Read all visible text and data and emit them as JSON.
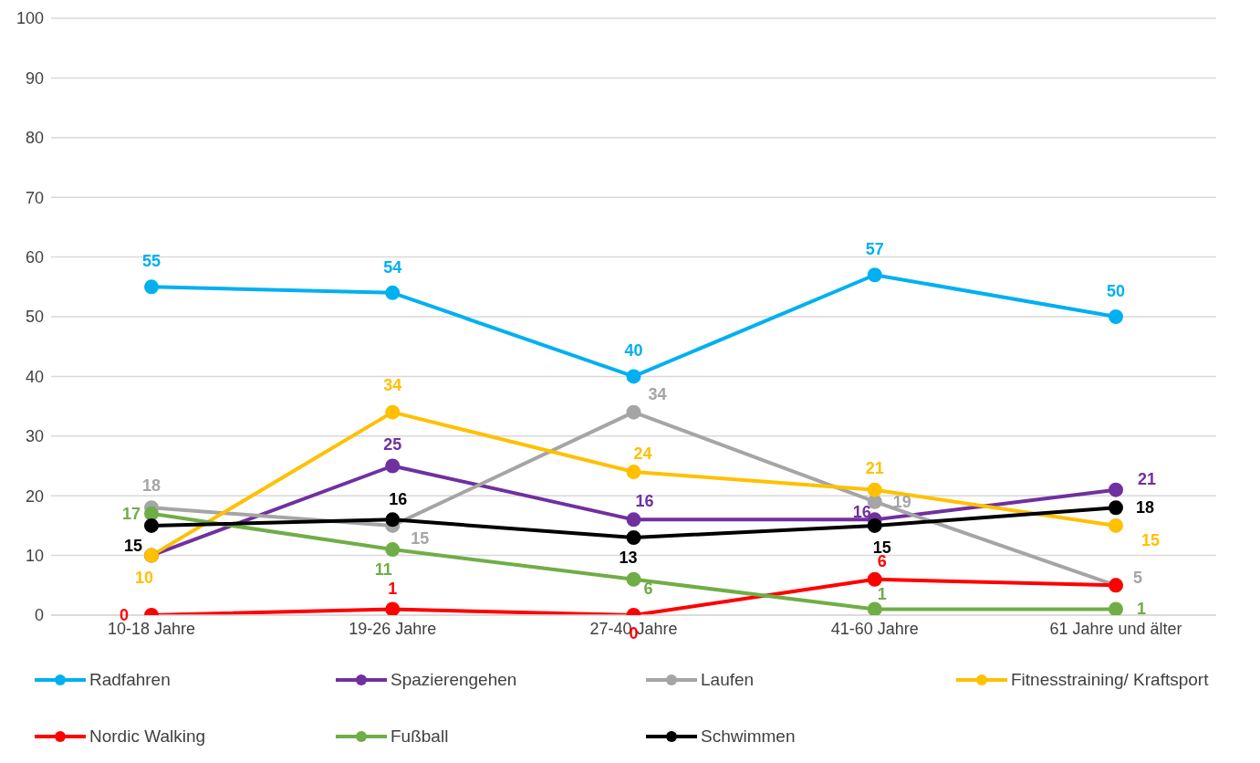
{
  "chart_data": {
    "type": "line",
    "categories": [
      "10-18 Jahre",
      "19-26 Jahre",
      "27-40 Jahre",
      "41-60 Jahre",
      "61 Jahre und älter"
    ],
    "ylim": [
      0,
      100
    ],
    "yticks": [
      0,
      10,
      20,
      30,
      40,
      50,
      60,
      70,
      80,
      90,
      100
    ],
    "grid": "y",
    "legend": "bottom",
    "marker": "circle",
    "data_labels": true,
    "series": [
      {
        "name": "Radfahren",
        "color": "#00b0f0",
        "values": [
          55,
          54,
          40,
          57,
          50
        ]
      },
      {
        "name": "Spazierengehen",
        "color": "#7030a0",
        "values": [
          10,
          25,
          16,
          16,
          21
        ],
        "value_labels": [
          null,
          "25",
          "16",
          "16",
          "21"
        ]
      },
      {
        "name": "Laufen",
        "color": "#a5a5a5",
        "values": [
          18,
          15,
          34,
          19,
          5
        ]
      },
      {
        "name": "Fitnesstraining/ Kraftsport",
        "color": "#ffc000",
        "values": [
          10,
          34,
          24,
          21,
          15
        ]
      },
      {
        "name": "Nordic Walking",
        "color": "#ff0000",
        "values": [
          0,
          1,
          0,
          6,
          5
        ],
        "value_labels": [
          "0",
          "1",
          "0",
          "6",
          null
        ]
      },
      {
        "name": "Fußball",
        "color": "#70ad47",
        "values": [
          17,
          11,
          6,
          1,
          1
        ]
      },
      {
        "name": "Schwimmen",
        "color": "#000000",
        "values": [
          15,
          16,
          13,
          15,
          18
        ]
      }
    ]
  }
}
